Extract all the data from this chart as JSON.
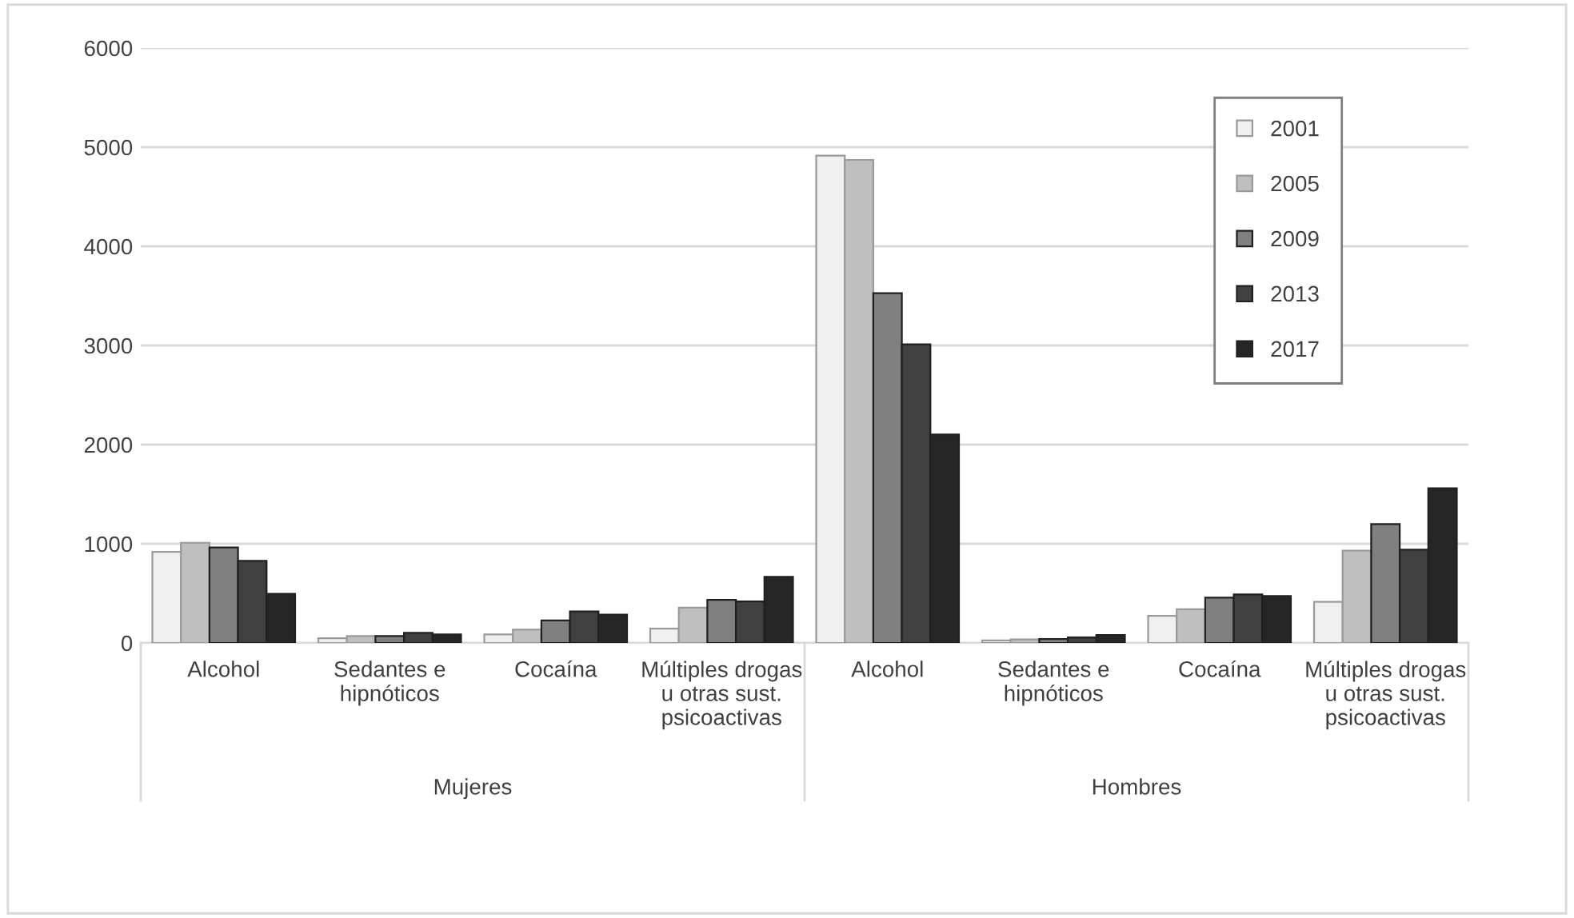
{
  "chart_data": {
    "type": "bar",
    "categories": [
      "Alcohol",
      "Sedantes e\nhipnóticos",
      "Cocaína",
      "Múltiples drogas\nu otras sust.\npsicoactivas",
      "Alcohol",
      "Sedantes e\nhipnóticos",
      "Cocaína",
      "Múltiples drogas\nu otras sust.\npsicoactivas"
    ],
    "series": [
      {
        "name": "2001",
        "color": "#f0f0f0",
        "values": [
          919,
          48,
          86,
          145,
          4915,
          25,
          274,
          414
        ]
      },
      {
        "name": "2005",
        "color": "#bfbfbf",
        "values": [
          1010,
          70,
          134,
          355,
          4871,
          35,
          339,
          930
        ]
      },
      {
        "name": "2009",
        "color": "#808080",
        "values": [
          963,
          70,
          226,
          435,
          3527,
          40,
          457,
          1199
        ]
      },
      {
        "name": "2013",
        "color": "#404040",
        "values": [
          828,
          102,
          317,
          419,
          3011,
          55,
          489,
          941
        ]
      },
      {
        "name": "2017",
        "color": "#262626",
        "values": [
          495,
          86,
          285,
          667,
          2102,
          80,
          473,
          1560
        ]
      }
    ],
    "annotations": [
      "Mujeres",
      "Hombres"
    ],
    "ylim": [
      0,
      6000
    ],
    "yticks": [
      0,
      1000,
      2000,
      3000,
      4000,
      5000,
      6000
    ],
    "grid": "y",
    "legend": "top right"
  }
}
